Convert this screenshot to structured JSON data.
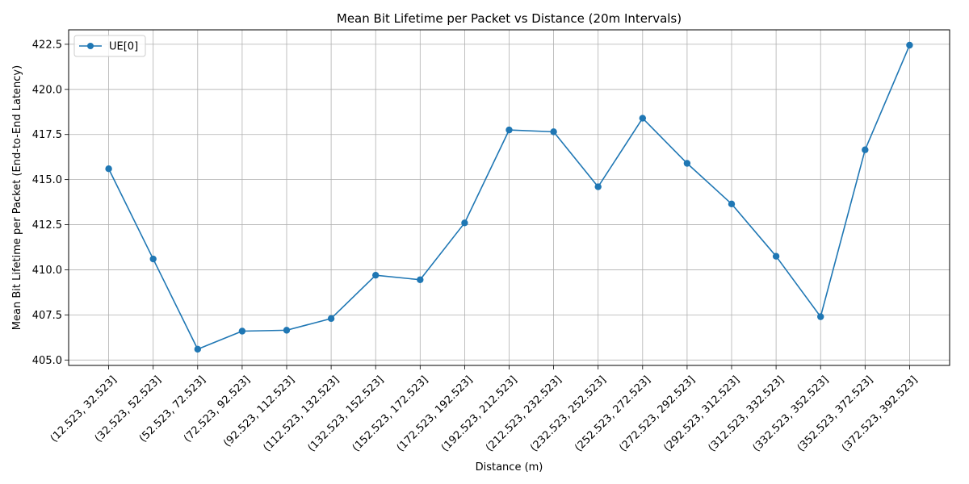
{
  "chart_data": {
    "type": "line",
    "title": "Mean Bit Lifetime per Packet vs Distance (20m Intervals)",
    "xlabel": "Distance (m)",
    "ylabel": "Mean Bit Lifetime per Packet (End-to-End Latency)",
    "categories": [
      "(12.523, 32.523]",
      "(32.523, 52.523]",
      "(52.523, 72.523]",
      "(72.523, 92.523]",
      "(92.523, 112.523]",
      "(112.523, 132.523]",
      "(132.523, 152.523]",
      "(152.523, 172.523]",
      "(172.523, 192.523]",
      "(192.523, 212.523]",
      "(212.523, 232.523]",
      "(232.523, 252.523]",
      "(252.523, 272.523]",
      "(272.523, 292.523]",
      "(292.523, 312.523]",
      "(312.523, 332.523]",
      "(332.523, 352.523]",
      "(352.523, 372.523]",
      "(372.523, 392.523]"
    ],
    "series": [
      {
        "name": "UE[0]",
        "color": "#1f77b4",
        "marker": "circle",
        "values": [
          415.6,
          410.6,
          405.6,
          406.6,
          406.65,
          407.3,
          409.7,
          409.45,
          412.6,
          417.75,
          417.65,
          414.6,
          418.4,
          415.9,
          413.65,
          410.75,
          407.4,
          416.65,
          422.45
        ]
      }
    ],
    "ylim": [
      404.7,
      423.3
    ],
    "yticks": [
      405.0,
      407.5,
      410.0,
      412.5,
      415.0,
      417.5,
      420.0,
      422.5
    ],
    "ytick_labels": [
      "405.0",
      "407.5",
      "410.0",
      "412.5",
      "415.0",
      "417.5",
      "420.0",
      "422.5"
    ],
    "grid": true,
    "legend_position": "top-left"
  }
}
